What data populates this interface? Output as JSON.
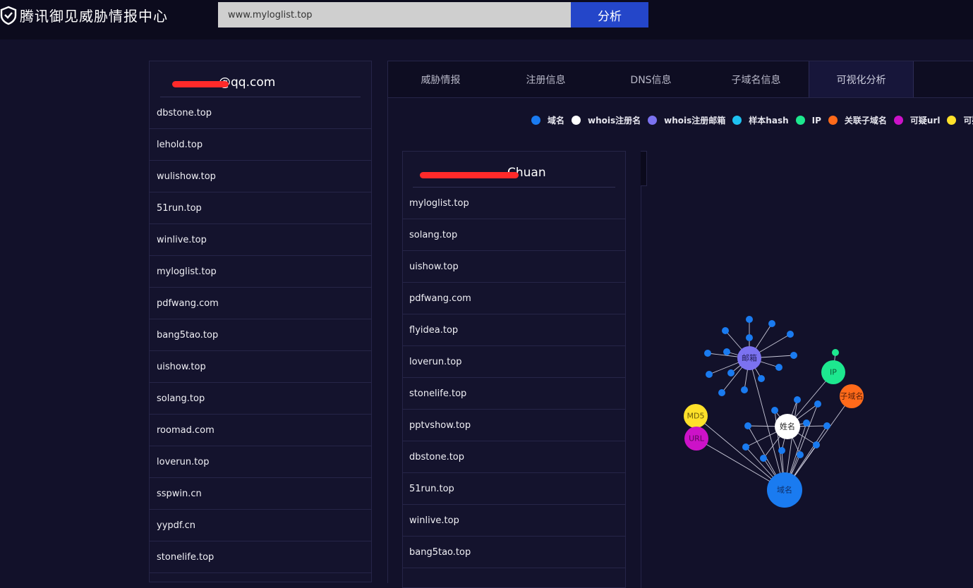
{
  "header": {
    "title": "腾讯御见威胁情报中心",
    "search_value": "www.myloglist.top",
    "analyze_label": "分析"
  },
  "left_panel": {
    "title": "@qq.com",
    "items": [
      "dbstone.top",
      "lehold.top",
      "wulishow.top",
      "51run.top",
      "winlive.top",
      "myloglist.top",
      "pdfwang.com",
      "bang5tao.top",
      "uishow.top",
      "solang.top",
      "roomad.com",
      "loverun.top",
      "sspwin.cn",
      "yypdf.cn",
      "stonelife.top"
    ]
  },
  "tabs": [
    "威胁情报",
    "注册信息",
    "DNS信息",
    "子域名信息",
    "可视化分析"
  ],
  "active_tab": "可视化分析",
  "legend": [
    {
      "label": "域名",
      "color": "#1a7bf0"
    },
    {
      "label": "whois注册名",
      "color": "#ffffff"
    },
    {
      "label": "whois注册邮箱",
      "color": "#7b72f0"
    },
    {
      "label": "样本hash",
      "color": "#1ec1f0"
    },
    {
      "label": "IP",
      "color": "#1de88f"
    },
    {
      "label": "关联子域名",
      "color": "#ff6a1a"
    },
    {
      "label": "可疑url",
      "color": "#cc12c8"
    },
    {
      "label": "可疑",
      "color": "#ffe12a"
    }
  ],
  "inner_panel": {
    "title": "Chuan",
    "items": [
      "myloglist.top",
      "solang.top",
      "uishow.top",
      "pdfwang.com",
      "flyidea.top",
      "loverun.top",
      "stonelife.top",
      "pptvshow.top",
      "dbstone.top",
      "51run.top",
      "winlive.top",
      "bang5tao.top"
    ]
  },
  "graph": {
    "hubs": [
      {
        "id": "domain",
        "label": "域名",
        "color": "#1a7bf0",
        "text_color": "#10306a"
      },
      {
        "id": "email",
        "label": "邮箱",
        "color": "#7b72f0",
        "text_color": "#25205a"
      },
      {
        "id": "name",
        "label": "姓名",
        "color": "#ffffff",
        "text_color": "#222222"
      },
      {
        "id": "ip",
        "label": "IP",
        "color": "#1de88f",
        "text_color": "#0b5a36"
      },
      {
        "id": "subdomain",
        "label": "子域名",
        "color": "#ff6a1a",
        "text_color": "#5a2008"
      },
      {
        "id": "md5",
        "label": "MD5",
        "color": "#ffe12a",
        "text_color": "#6a5a08"
      },
      {
        "id": "url",
        "label": "URL",
        "color": "#cc12c8",
        "text_color": "#5a0858"
      }
    ],
    "leaf_color": "#1a7bf0",
    "ip_leaf_color": "#1de88f",
    "edge_color": "#c8c8d8"
  }
}
